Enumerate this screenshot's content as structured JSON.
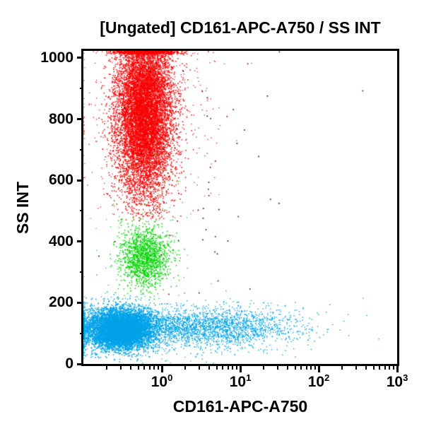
{
  "chart_data": {
    "type": "scatter",
    "title": "[Ungated] CD161-APC-A750 / SS INT",
    "xlabel": "CD161-APC-A750",
    "ylabel": "SS INT",
    "x_scale": "log",
    "x_range": [
      0.1,
      1000
    ],
    "y_scale": "linear",
    "y_range": [
      0,
      1023
    ],
    "grid": "off",
    "legend": "none",
    "frame_color": "#000000",
    "background_color": "#ffffff",
    "x_major_ticks": [
      {
        "value": 1,
        "base": "10",
        "exp": "0"
      },
      {
        "value": 10,
        "base": "10",
        "exp": "1"
      },
      {
        "value": 100,
        "base": "10",
        "exp": "2"
      },
      {
        "value": 1000,
        "base": "10",
        "exp": "3"
      }
    ],
    "y_major_ticks": [
      {
        "value": 0,
        "label": "0"
      },
      {
        "value": 200,
        "label": "200"
      },
      {
        "value": 400,
        "label": "400"
      },
      {
        "value": 600,
        "label": "600"
      },
      {
        "value": 800,
        "label": "800"
      },
      {
        "value": 1000,
        "label": "1000"
      }
    ],
    "y_minor_tick_values": [
      100,
      300,
      500,
      700,
      900
    ],
    "point_seed": 42,
    "populations": [
      {
        "name": "granulocytes-halo",
        "color": "#fa0000",
        "count": 550,
        "lx_mean": -0.25,
        "lx_sd": 0.42,
        "y_mean": 820,
        "y_sd": 185,
        "y_min": 480,
        "size": 1.4,
        "alpha": 0.8
      },
      {
        "name": "granulocytes-red",
        "color": "#fa0000",
        "count": 9500,
        "lx_mean": -0.22,
        "lx_sd": 0.18,
        "y_mean": 830,
        "y_sd": 140,
        "y_min": 470,
        "size": 1.6,
        "alpha": 0.92
      },
      {
        "name": "debris-dark-red",
        "color": "#6b0f0f",
        "count": 40,
        "lx_mean": 0.3,
        "lx_sd": 0.65,
        "y_mean": 620,
        "y_sd": 230,
        "size": 1.8,
        "alpha": 0.9
      },
      {
        "name": "debris-pink",
        "color": "#ff4fa0",
        "count": 22,
        "lx_mean": 0.0,
        "lx_sd": 0.5,
        "y_mean": 730,
        "y_sd": 190,
        "size": 1.6,
        "alpha": 0.9
      },
      {
        "name": "debris-black",
        "color": "#1a1a1a",
        "count": 18,
        "lx_mean": 0.5,
        "lx_sd": 0.6,
        "y_mean": 550,
        "y_sd": 250,
        "size": 1.8,
        "alpha": 0.9
      },
      {
        "name": "monocytes-halo",
        "color": "#00d600",
        "count": 120,
        "lx_mean": -0.25,
        "lx_sd": 0.35,
        "y_mean": 380,
        "y_sd": 160,
        "size": 1.4,
        "alpha": 0.8
      },
      {
        "name": "monocytes-green",
        "color": "#00d600",
        "count": 1350,
        "lx_mean": -0.22,
        "lx_sd": 0.16,
        "y_mean": 348,
        "y_sd": 50,
        "size": 1.6,
        "alpha": 0.92
      },
      {
        "name": "lymphocytes-halo",
        "color": "#00a3e8",
        "count": 250,
        "lx_mean": -0.4,
        "lx_sd": 0.45,
        "y_mean": 120,
        "y_sd": 55,
        "size": 1.4,
        "alpha": 0.8
      },
      {
        "name": "cd161-positive-lymph-tail",
        "color": "#00a3e8",
        "count": 2500,
        "lx_mean": 0.55,
        "lx_sd": 0.62,
        "y_mean": 120,
        "y_sd": 34,
        "size": 1.5,
        "alpha": 0.88
      },
      {
        "name": "lymphocytes-blue",
        "color": "#00a3e8",
        "count": 7200,
        "lx_mean": -0.53,
        "lx_sd": 0.22,
        "y_mean": 113,
        "y_sd": 33,
        "size": 1.6,
        "alpha": 0.92
      }
    ]
  }
}
